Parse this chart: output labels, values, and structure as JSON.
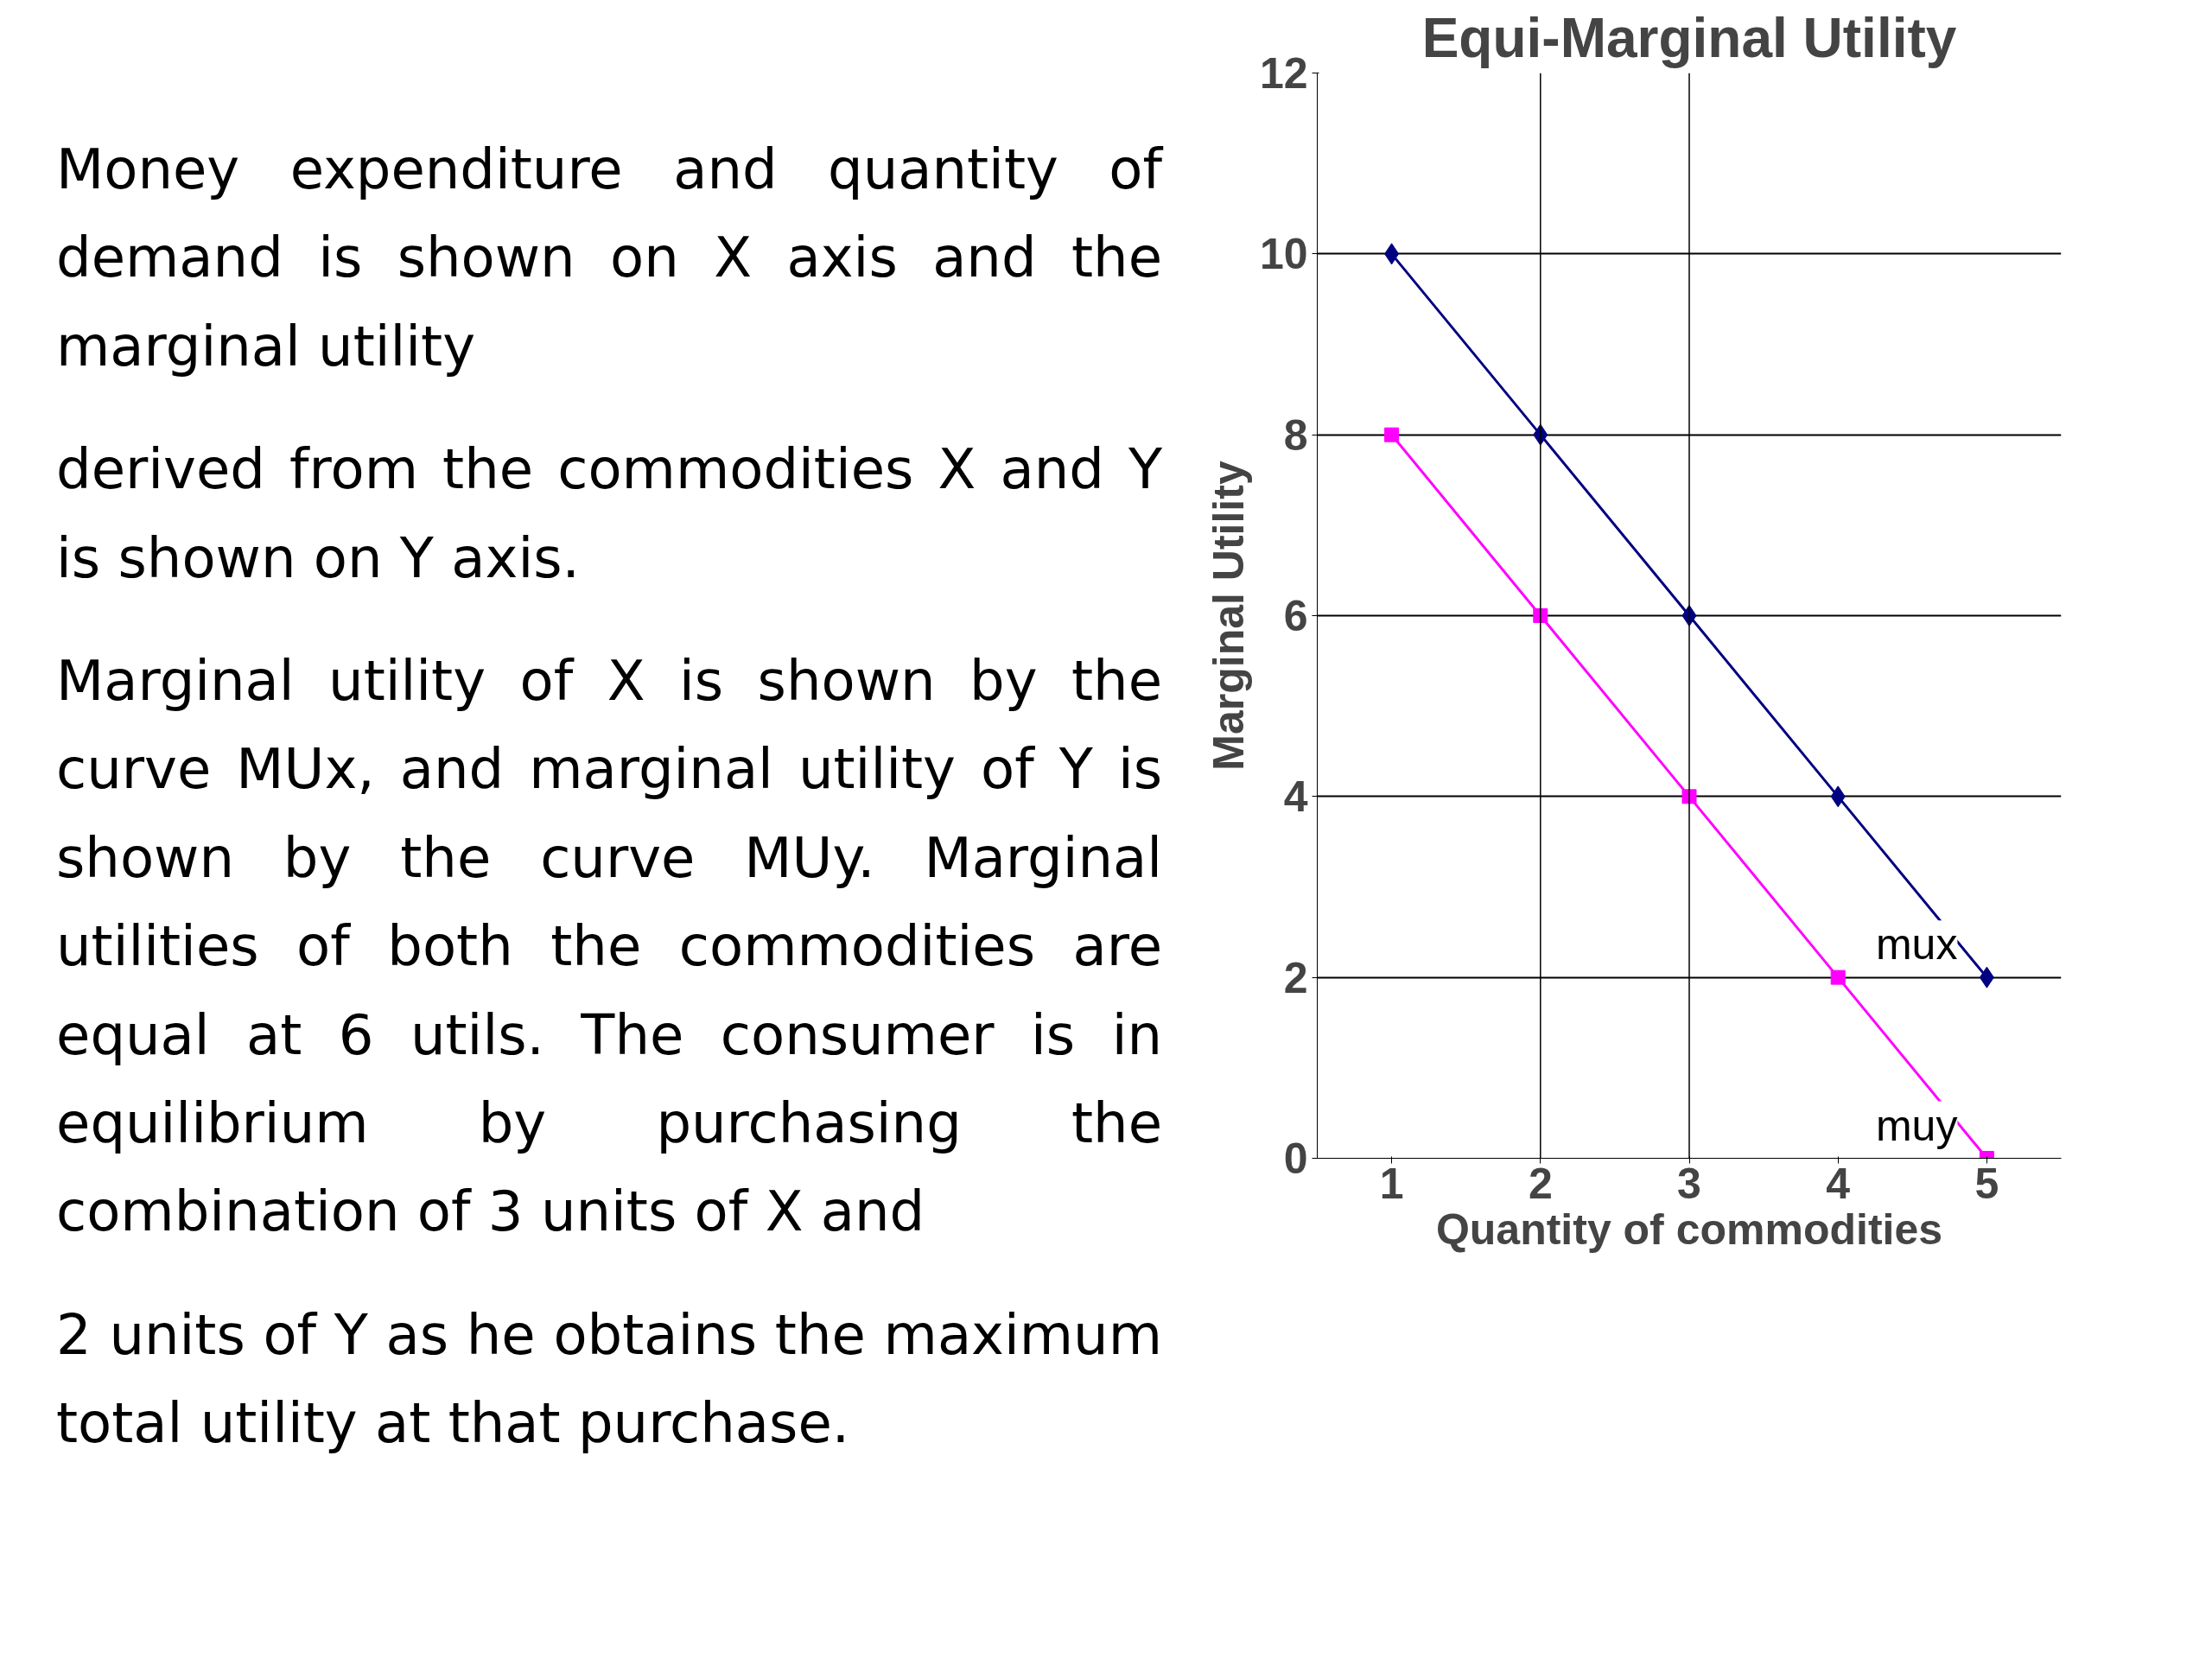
{
  "chart_data": {
    "type": "line",
    "title": "Equi-Marginal Utility",
    "xlabel": "Quantity of commodities",
    "ylabel": "Marginal Utility",
    "categories": [
      "1",
      "2",
      "3",
      "4",
      "5"
    ],
    "series": [
      {
        "name": "mux",
        "color": "#000080",
        "marker": "diamond",
        "values": [
          10,
          8,
          6,
          4,
          2
        ]
      },
      {
        "name": "muy",
        "color": "#ff00ff",
        "marker": "square",
        "values": [
          8,
          6,
          4,
          2,
          0
        ]
      }
    ],
    "ylim": [
      0,
      12
    ],
    "yticks": [
      0,
      2,
      4,
      6,
      8,
      10,
      12
    ],
    "grid": "y",
    "ref_lines": [
      {
        "axis": "x",
        "value": "2",
        "color": "#000000"
      },
      {
        "axis": "x",
        "value": "3",
        "color": "#000000"
      }
    ],
    "annotations": [
      "Money expenditure and quantity of demand is shown on X axis and the marginal utility",
      "derived from the commodities X and Y is shown on Y axis.",
      "Marginal utility of X is shown by the curve MUx, and marginal utility of Y is shown by the curve MUy. Marginal utilities of both the commodities are equal at 6 utils. The consumer is in equilibrium by purchasing the combination of 3 units of X and",
      "2 units of Y as he obtains the maximum total utility at that purchase."
    ]
  }
}
